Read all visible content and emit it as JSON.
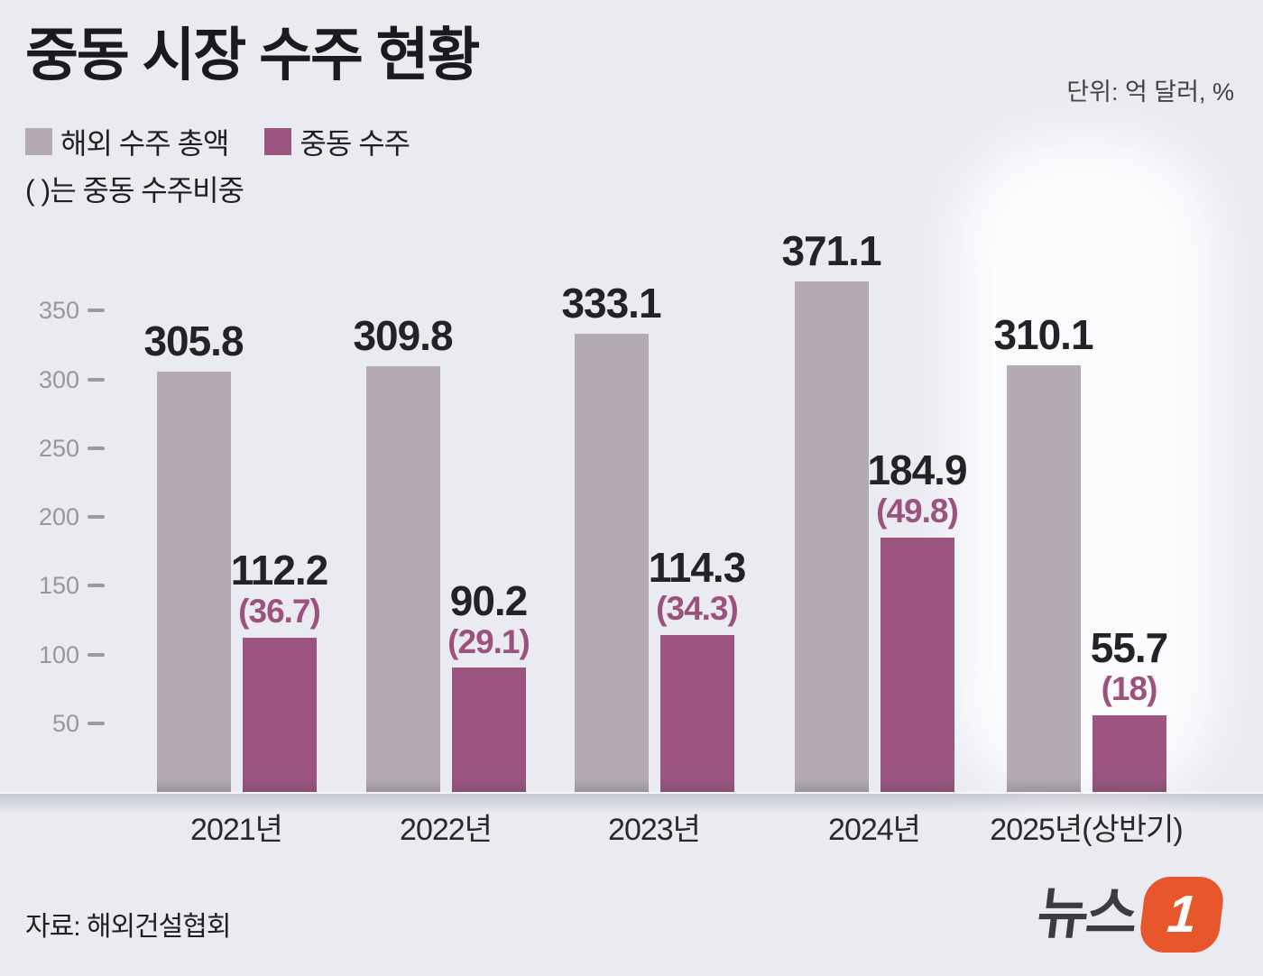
{
  "title": "중동 시장 수주 현황",
  "unit_label": "단위: 억 달러, %",
  "note": "( )는 중동 수주비중",
  "source": "자료: 해외건설협회",
  "legend": [
    {
      "label": "해외 수주 총액",
      "color": "#b3aab4"
    },
    {
      "label": "중동 수주",
      "color": "#9b5580"
    }
  ],
  "logo": {
    "text": "뉴스",
    "one": "1",
    "tile_color": "#e7572b"
  },
  "colors": {
    "background": "#e9ebf1",
    "bar_total": "#b3aab4",
    "bar_mideast": "#9b5580",
    "value_text": "#232327",
    "share_text": "#9c527d",
    "tick_text": "#97979f"
  },
  "chart_data": {
    "type": "bar",
    "categories": [
      "2021년",
      "2022년",
      "2023년",
      "2024년",
      "2025년(상반기)"
    ],
    "series": [
      {
        "name": "해외 수주 총액",
        "color": "#b3aab4",
        "values": [
          305.8,
          309.8,
          333.1,
          371.1,
          310.1
        ],
        "labels": [
          "305.8",
          "309.8",
          "333.1",
          "371.1",
          "310.1"
        ]
      },
      {
        "name": "중동 수주",
        "color": "#9b5580",
        "values": [
          112.2,
          90.2,
          114.3,
          184.9,
          55.7
        ],
        "labels": [
          "112.2",
          "90.2",
          "114.3",
          "184.9",
          "55.7"
        ],
        "share_pct": [
          36.7,
          29.1,
          34.3,
          49.8,
          18
        ],
        "share_labels": [
          "(36.7)",
          "(29.1)",
          "(34.3)",
          "(49.8)",
          "(18)"
        ]
      }
    ],
    "yticks": [
      50,
      100,
      150,
      200,
      250,
      300,
      350
    ],
    "ylim": [
      0,
      390
    ],
    "grid": false,
    "legend_position": "top-left",
    "highlighted_category": "2025년(상반기)",
    "unit": "억 달러, %"
  }
}
